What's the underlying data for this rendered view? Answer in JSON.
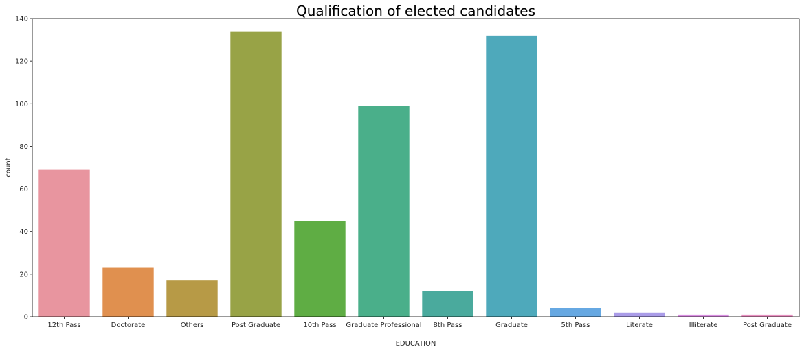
{
  "chart_data": {
    "type": "bar",
    "title": "Qualification of elected candidates",
    "xlabel": "EDUCATION",
    "ylabel": "count",
    "ylim": [
      0,
      140
    ],
    "yticks": [
      0,
      20,
      40,
      60,
      80,
      100,
      120,
      140
    ],
    "grid": false,
    "categories": [
      "12th Pass",
      "Doctorate",
      "Others",
      "Post Graduate",
      "10th Pass",
      "Graduate Professional",
      "8th Pass",
      "Graduate",
      "5th Pass",
      "Literate",
      "Illiterate",
      "Post Graduate"
    ],
    "values": [
      69,
      23,
      17,
      134,
      45,
      99,
      12,
      132,
      4,
      2,
      1,
      1
    ],
    "colors": [
      "#e8959f",
      "#e0904f",
      "#b79a46",
      "#98a346",
      "#5fad44",
      "#4aaf8a",
      "#4aaa9d",
      "#4ea9bb",
      "#66a8e2",
      "#aa9ce8",
      "#d98ee1",
      "#e890c0"
    ]
  }
}
